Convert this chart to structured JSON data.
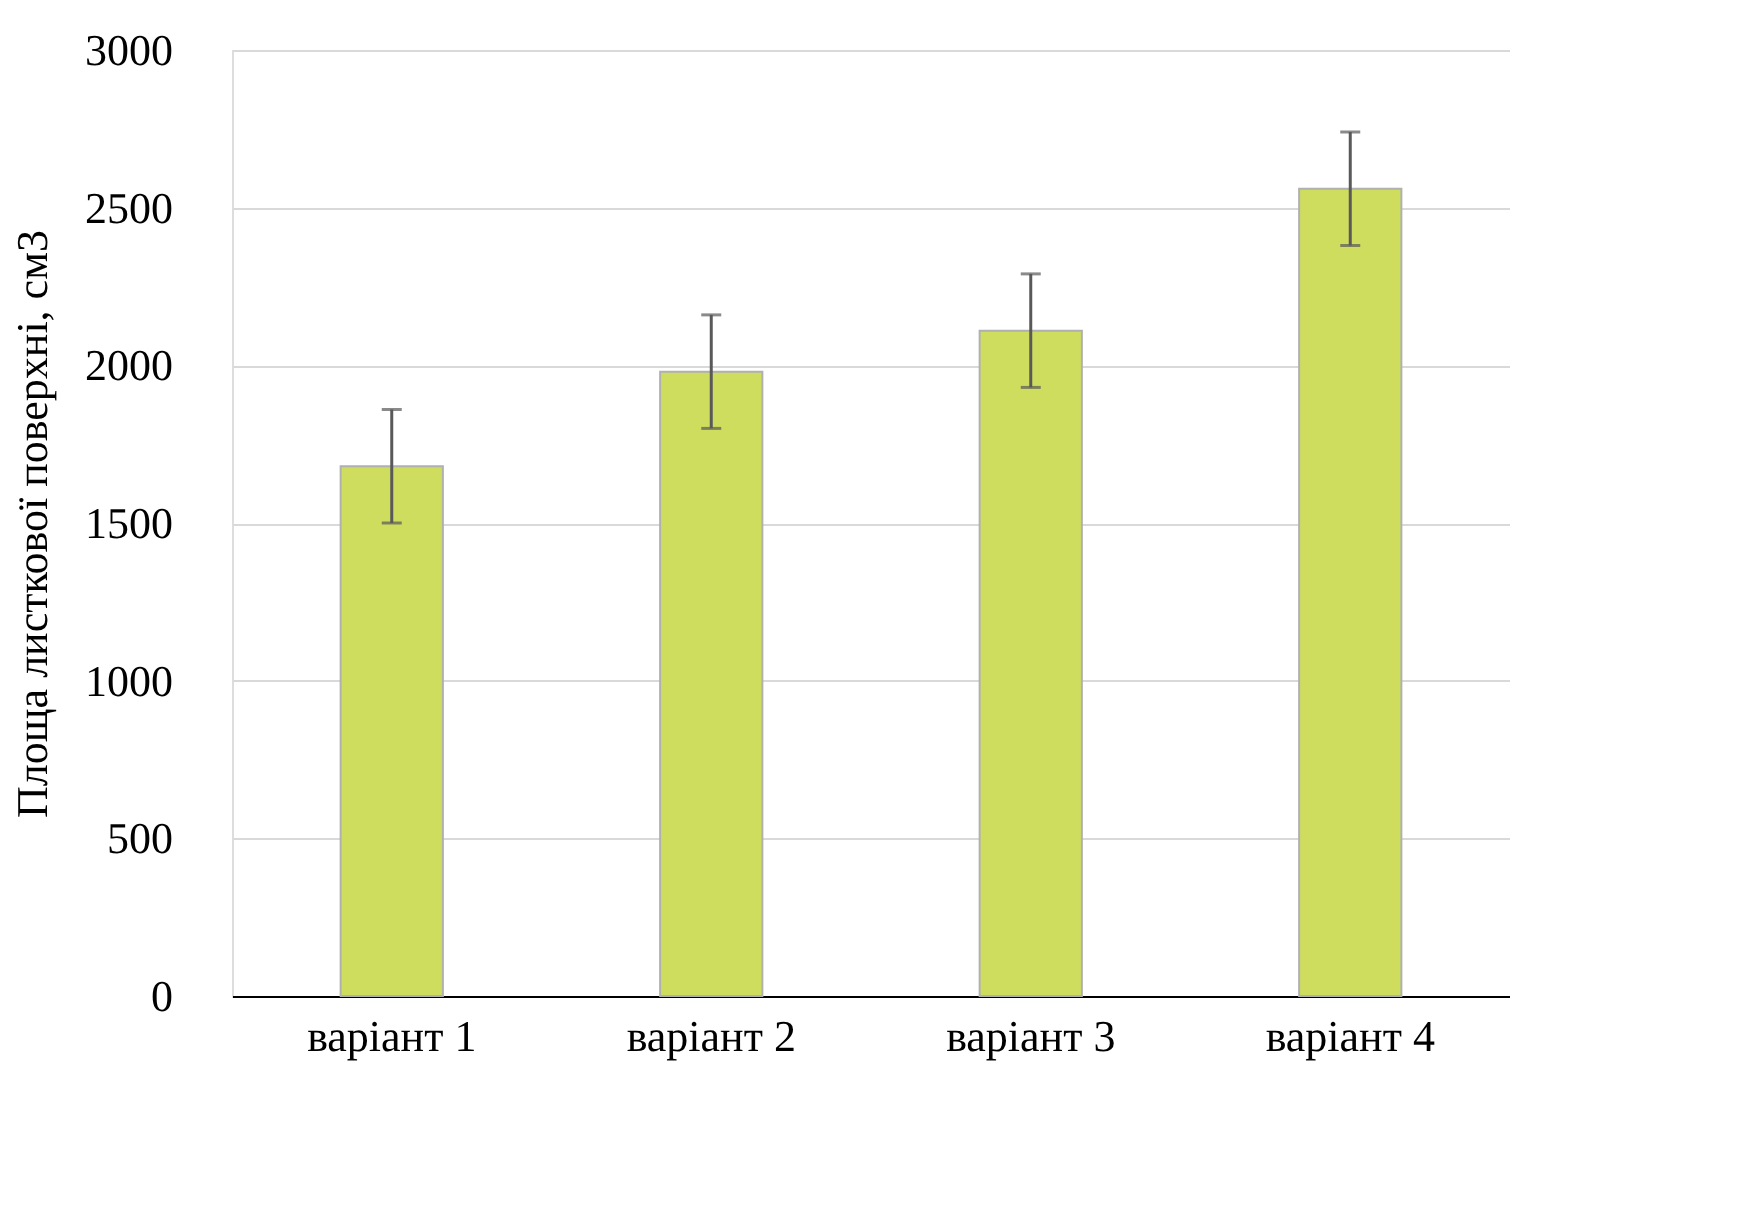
{
  "chart_data": {
    "type": "bar",
    "ylabel": "Площа листкової поверхні, см3",
    "categories": [
      "варіант 1",
      "варіант 2",
      "варіант 3",
      "варіант 4"
    ],
    "values": [
      1680,
      1980,
      2110,
      2560
    ],
    "errors": [
      180,
      180,
      180,
      180
    ],
    "color": "#cfdd5f",
    "ylim": [
      0,
      3000
    ],
    "yticks": [
      0,
      500,
      1000,
      1500,
      2000,
      2500,
      3000
    ],
    "grid": "y"
  }
}
